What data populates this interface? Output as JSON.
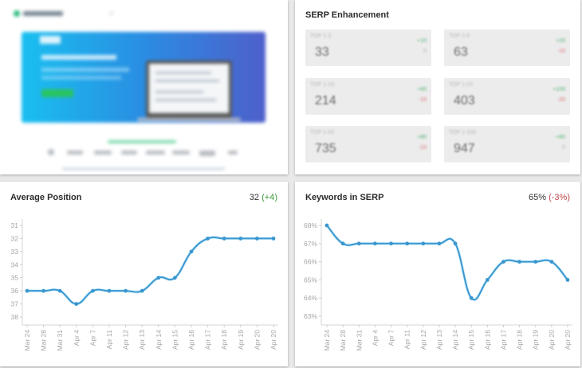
{
  "preview": {
    "description": "blurred website screenshot preview"
  },
  "serp": {
    "title": "SERP Enhancement",
    "tiles": [
      {
        "label": "TOP 1-3",
        "value": "33",
        "up": "+10",
        "down": "0"
      },
      {
        "label": "TOP 1-5",
        "value": "63",
        "up": "+20",
        "down": "-10"
      },
      {
        "label": "TOP 1-10",
        "value": "214",
        "up": "+60",
        "down": "-10"
      },
      {
        "label": "TOP 1-20",
        "value": "403",
        "up": "+100",
        "down": "-20"
      },
      {
        "label": "TOP 1-50",
        "value": "735",
        "up": "+80",
        "down": "-10"
      },
      {
        "label": "TOP 1-100",
        "value": "947",
        "up": "+60",
        "down": "0"
      }
    ]
  },
  "avg_position": {
    "title": "Average Position",
    "value": "32",
    "delta": "(+4)"
  },
  "keywords_serp": {
    "title": "Keywords in SERP",
    "value": "65%",
    "delta": "(-3%)"
  },
  "colors": {
    "line": "#3a97cf",
    "positive": "#3a9a3e",
    "negative": "#c0474b"
  },
  "chart_data": [
    {
      "type": "line",
      "title": "Average Position",
      "categories": [
        "Mar 24",
        "Mar 28",
        "Mar 31",
        "Apr 4",
        "Apr 7",
        "Apr 11",
        "Apr 12",
        "Apr 13",
        "Apr 14",
        "Apr 15",
        "Apr 16",
        "Apr 17",
        "Apr 18",
        "Apr 19",
        "Apr 20",
        "Apr 20"
      ],
      "values": [
        36,
        36,
        36,
        37,
        36,
        36,
        36,
        36,
        35,
        35,
        33,
        32,
        32,
        32,
        32,
        32
      ],
      "yticks": [
        "31",
        "32",
        "33",
        "34",
        "35",
        "36",
        "37",
        "38"
      ],
      "ylim": [
        31,
        38
      ],
      "y_inverted": true,
      "xlabel": "",
      "ylabel": "",
      "grid": false
    },
    {
      "type": "line",
      "title": "Keywords in SERP",
      "categories": [
        "Mar 24",
        "Mar 28",
        "Mar 31",
        "Apr 4",
        "Apr 7",
        "Apr 11",
        "Apr 12",
        "Apr 13",
        "Apr 14",
        "Apr 15",
        "Apr 16",
        "Apr 17",
        "Apr 18",
        "Apr 19",
        "Apr 20",
        "Apr 20"
      ],
      "values": [
        68,
        67,
        67,
        67,
        67,
        67,
        67,
        67,
        67,
        64,
        65,
        66,
        66,
        66,
        66,
        65
      ],
      "yticks": [
        "68%",
        "67%",
        "66%",
        "65%",
        "64%",
        "63%"
      ],
      "ylim": [
        63,
        68
      ],
      "xlabel": "",
      "ylabel": "",
      "grid": false
    }
  ]
}
